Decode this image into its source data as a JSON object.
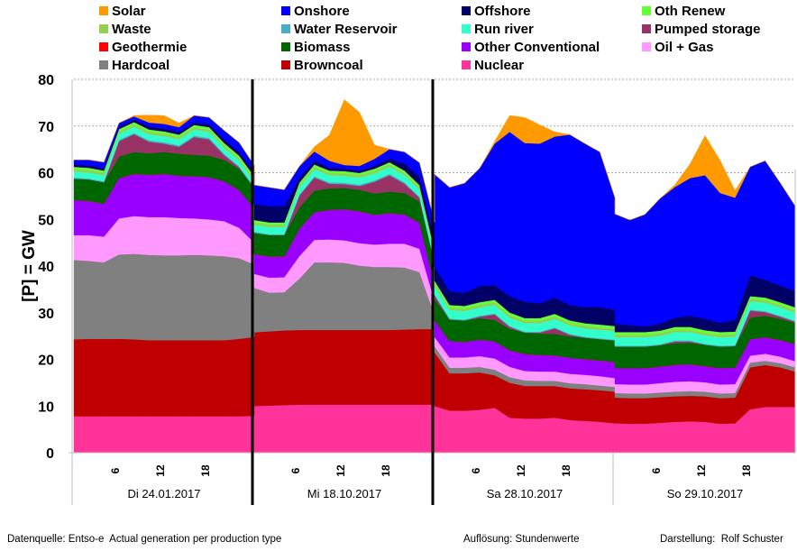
{
  "chart_data": {
    "type": "area",
    "stacked": true,
    "title": "",
    "ylabel": "[P] = GW",
    "xlabel": "",
    "ylim": [
      0,
      80
    ],
    "yticks": [
      0,
      10,
      20,
      30,
      40,
      50,
      60,
      70,
      80
    ],
    "grid": "horizontal-dotted",
    "legend_position": "top",
    "hour_ticks": [
      "6",
      "12",
      "18"
    ],
    "days": [
      "Di 24.01.2017",
      "Mi 18.10.2017",
      "Sa 28.10.2017",
      "So 29.10.2017"
    ],
    "sample_hours": [
      0,
      2,
      4,
      6,
      8,
      10,
      12,
      14,
      16,
      18,
      20,
      22,
      24
    ],
    "stack_order_bottom_to_top": [
      "Nuclear",
      "Browncoal",
      "Hardcoal",
      "Oil + Gas",
      "Other Conventional",
      "Geothermie",
      "Biomass",
      "Pumped storage",
      "Water Reservoir",
      "Run river",
      "Waste",
      "Oth Renew",
      "Offshore",
      "Onshore",
      "Solar"
    ],
    "series": [
      {
        "name": "Nuclear",
        "color": "#ff3399",
        "values": [
          [
            7.8,
            7.8,
            7.8,
            7.8,
            7.8,
            7.8,
            7.8,
            7.8,
            7.8,
            7.8,
            7.8,
            7.8,
            7.9
          ],
          [
            10.0,
            10.1,
            10.2,
            10.3,
            10.3,
            10.3,
            10.3,
            10.3,
            10.3,
            10.3,
            10.3,
            10.3,
            10.3
          ],
          [
            10.0,
            9.0,
            9.0,
            9.2,
            9.6,
            7.5,
            7.3,
            7.3,
            7.5,
            7.0,
            6.8,
            6.6,
            6.3
          ],
          [
            6.3,
            6.2,
            6.2,
            6.4,
            6.6,
            6.7,
            6.6,
            6.2,
            6.3,
            9.3,
            9.8,
            9.8,
            9.8
          ]
        ]
      },
      {
        "name": "Browncoal",
        "color": "#c00000",
        "values": [
          [
            16.5,
            16.6,
            16.6,
            16.6,
            16.5,
            16.3,
            16.3,
            16.3,
            16.3,
            16.3,
            16.3,
            16.6,
            16.9
          ],
          [
            15.8,
            15.9,
            16.0,
            16.0,
            16.0,
            16.0,
            16.0,
            16.0,
            16.0,
            16.0,
            16.1,
            16.2,
            16.2
          ],
          [
            11.5,
            8.0,
            8.0,
            8.0,
            7.0,
            7.5,
            7.0,
            7.0,
            6.8,
            6.8,
            6.8,
            6.8,
            6.8
          ],
          [
            5.5,
            5.5,
            5.5,
            5.5,
            5.5,
            5.5,
            5.5,
            5.5,
            5.5,
            9.0,
            9.0,
            8.5,
            7.6
          ]
        ]
      },
      {
        "name": "Hardcoal",
        "color": "#808080",
        "values": [
          [
            17.0,
            16.7,
            16.4,
            18.1,
            18.3,
            18.3,
            18.2,
            18.2,
            18.3,
            18.2,
            18.0,
            17.3,
            15.5
          ],
          [
            9.5,
            8.3,
            8.2,
            11.0,
            14.5,
            14.5,
            14.4,
            13.8,
            13.5,
            13.5,
            13.3,
            12.2,
            3.0
          ],
          [
            1.3,
            1.2,
            1.2,
            1.2,
            1.2,
            1.2,
            1.2,
            1.1,
            1.1,
            1.1,
            1.1,
            1.0,
            1.0
          ],
          [
            1.0,
            1.0,
            1.0,
            1.0,
            1.0,
            1.0,
            1.0,
            1.0,
            1.0,
            1.0,
            0.9,
            0.9,
            0.9
          ]
        ]
      },
      {
        "name": "Oil + Gas",
        "color": "#ff99ff",
        "values": [
          [
            5.3,
            5.5,
            5.5,
            7.7,
            8.1,
            8.1,
            8.2,
            8.0,
            7.8,
            7.7,
            7.5,
            6.5,
            4.7
          ],
          [
            3.0,
            3.2,
            3.2,
            4.8,
            4.8,
            4.9,
            4.8,
            4.8,
            4.8,
            5.0,
            5.1,
            5.0,
            3.0
          ],
          [
            2.0,
            2.2,
            2.2,
            2.3,
            2.4,
            2.2,
            2.0,
            2.0,
            2.0,
            2.0,
            2.0,
            2.0,
            1.9
          ],
          [
            1.9,
            1.9,
            1.9,
            2.0,
            2.1,
            2.1,
            2.0,
            1.9,
            1.9,
            1.5,
            1.5,
            1.4,
            1.3
          ]
        ]
      },
      {
        "name": "Other Conventional",
        "color": "#9900ff",
        "values": [
          [
            7.5,
            7.3,
            7.0,
            8.6,
            9.0,
            9.0,
            9.2,
            9.0,
            9.0,
            9.0,
            8.5,
            8.0,
            7.3
          ],
          [
            4.2,
            4.5,
            4.4,
            5.8,
            5.9,
            6.3,
            6.6,
            6.8,
            6.3,
            6.5,
            6.2,
            5.5,
            3.5
          ],
          [
            3.5,
            3.5,
            3.3,
            3.5,
            3.6,
            3.5,
            3.6,
            3.5,
            3.4,
            3.4,
            3.3,
            3.3,
            3.4
          ],
          [
            3.4,
            3.5,
            3.5,
            3.5,
            3.6,
            3.6,
            3.4,
            3.5,
            3.5,
            3.5,
            3.5,
            3.5,
            3.6
          ]
        ]
      },
      {
        "name": "Geothermie",
        "color": "#ff0000",
        "values": [
          [
            0.05,
            0.05,
            0.05,
            0.05,
            0.05,
            0.05,
            0.05,
            0.05,
            0.05,
            0.05,
            0.05,
            0.05,
            0.05
          ],
          [
            0.05,
            0.05,
            0.05,
            0.05,
            0.05,
            0.05,
            0.05,
            0.05,
            0.05,
            0.05,
            0.05,
            0.05,
            0.05
          ],
          [
            0.05,
            0.05,
            0.05,
            0.05,
            0.05,
            0.05,
            0.05,
            0.05,
            0.05,
            0.05,
            0.05,
            0.05,
            0.05
          ],
          [
            0.05,
            0.05,
            0.05,
            0.05,
            0.05,
            0.05,
            0.05,
            0.05,
            0.05,
            0.05,
            0.05,
            0.05,
            0.05
          ]
        ]
      },
      {
        "name": "Biomass",
        "color": "#006600",
        "values": [
          [
            4.6,
            4.6,
            4.6,
            4.6,
            4.7,
            4.6,
            4.7,
            4.7,
            4.6,
            4.6,
            4.6,
            4.6,
            4.4
          ],
          [
            4.6,
            4.6,
            4.6,
            4.6,
            4.6,
            4.6,
            4.6,
            4.6,
            4.6,
            4.6,
            4.6,
            4.6,
            4.6
          ],
          [
            4.6,
            4.6,
            4.6,
            4.6,
            4.6,
            4.6,
            4.6,
            4.6,
            4.6,
            4.6,
            4.6,
            4.6,
            4.6
          ],
          [
            4.6,
            4.6,
            4.6,
            4.6,
            4.6,
            4.6,
            4.6,
            4.6,
            4.6,
            4.6,
            4.6,
            4.6,
            4.6
          ]
        ]
      },
      {
        "name": "Pumped storage",
        "color": "#993366",
        "values": [
          [
            0.0,
            0.0,
            0.0,
            3.3,
            3.8,
            2.5,
            1.8,
            1.5,
            3.8,
            3.5,
            1.0,
            0.3,
            0.0
          ],
          [
            0.0,
            0.0,
            0.0,
            2.5,
            2.8,
            1.0,
            0.8,
            0.8,
            2.5,
            3.5,
            2.0,
            0.8,
            0.0
          ],
          [
            0.8,
            0.0,
            0.0,
            0.3,
            1.2,
            0.4,
            0.0,
            0.2,
            1.2,
            0.3,
            0.0,
            0.0,
            0.0
          ],
          [
            0.0,
            0.0,
            0.0,
            0.0,
            0.4,
            0.3,
            0.0,
            0.0,
            0.0,
            1.5,
            0.8,
            0.4,
            0.2
          ]
        ]
      },
      {
        "name": "Water Reservoir",
        "color": "#4bacc6",
        "values": [
          [
            0.2,
            0.2,
            0.2,
            0.3,
            0.3,
            0.3,
            0.3,
            0.3,
            0.3,
            0.3,
            0.3,
            0.2,
            0.2
          ],
          [
            0.2,
            0.2,
            0.2,
            0.3,
            0.3,
            0.3,
            0.3,
            0.3,
            0.3,
            0.3,
            0.3,
            0.2,
            0.2
          ],
          [
            0.2,
            0.2,
            0.2,
            0.2,
            0.2,
            0.2,
            0.2,
            0.2,
            0.2,
            0.2,
            0.2,
            0.2,
            0.2
          ],
          [
            0.2,
            0.2,
            0.2,
            0.2,
            0.2,
            0.2,
            0.2,
            0.2,
            0.2,
            0.2,
            0.2,
            0.2,
            0.2
          ]
        ]
      },
      {
        "name": "Run river",
        "color": "#33ffcc",
        "values": [
          [
            1.3,
            1.3,
            1.3,
            1.3,
            1.3,
            1.3,
            1.3,
            1.3,
            1.3,
            1.3,
            1.3,
            1.3,
            1.3
          ],
          [
            1.5,
            1.5,
            1.5,
            1.5,
            1.5,
            1.5,
            1.5,
            1.5,
            1.5,
            1.5,
            1.5,
            1.5,
            1.5
          ],
          [
            1.8,
            1.8,
            1.8,
            1.8,
            1.8,
            1.8,
            1.8,
            1.8,
            1.8,
            1.8,
            1.8,
            1.8,
            1.8
          ],
          [
            1.8,
            1.8,
            1.8,
            1.8,
            1.8,
            1.8,
            1.8,
            1.8,
            1.8,
            1.8,
            1.8,
            1.8,
            1.8
          ]
        ]
      },
      {
        "name": "Waste",
        "color": "#92d050",
        "values": [
          [
            0.5,
            0.5,
            0.5,
            0.5,
            0.5,
            0.5,
            0.5,
            0.5,
            0.5,
            0.5,
            0.5,
            0.5,
            0.5
          ],
          [
            0.5,
            0.5,
            0.5,
            0.5,
            0.5,
            0.5,
            0.5,
            0.5,
            0.5,
            0.5,
            0.5,
            0.5,
            0.5
          ],
          [
            0.5,
            0.5,
            0.5,
            0.5,
            0.5,
            0.5,
            0.5,
            0.5,
            0.5,
            0.5,
            0.5,
            0.5,
            0.5
          ],
          [
            0.5,
            0.5,
            0.5,
            0.5,
            0.5,
            0.5,
            0.5,
            0.5,
            0.5,
            0.5,
            0.5,
            0.5,
            0.5
          ]
        ]
      },
      {
        "name": "Oth Renew",
        "color": "#66ff33",
        "values": [
          [
            0.5,
            0.5,
            0.5,
            0.5,
            0.5,
            0.5,
            0.5,
            0.5,
            0.5,
            0.5,
            0.5,
            0.5,
            0.5
          ],
          [
            0.5,
            0.5,
            0.5,
            0.5,
            0.5,
            0.5,
            0.5,
            0.5,
            0.5,
            0.5,
            0.5,
            0.5,
            0.5
          ],
          [
            0.6,
            0.6,
            0.6,
            0.6,
            0.6,
            0.6,
            0.6,
            0.6,
            0.6,
            0.6,
            0.6,
            0.6,
            0.6
          ],
          [
            0.6,
            0.6,
            0.6,
            0.6,
            0.6,
            0.6,
            0.6,
            0.6,
            0.6,
            0.6,
            0.6,
            0.6,
            0.6
          ]
        ]
      },
      {
        "name": "Offshore",
        "color": "#000066",
        "values": [
          [
            0.5,
            0.5,
            0.5,
            0.5,
            0.5,
            0.6,
            0.6,
            0.6,
            0.5,
            0.6,
            0.7,
            0.8,
            0.8
          ],
          [
            3.5,
            3.5,
            3.5,
            1.0,
            0.8,
            0.6,
            0.5,
            0.5,
            0.6,
            0.8,
            1.5,
            1.8,
            2.5
          ],
          [
            3.0,
            3.0,
            2.8,
            3.5,
            3.2,
            3.5,
            3.5,
            3.2,
            3.5,
            3.3,
            3.5,
            3.8,
            3.5
          ],
          [
            1.8,
            1.5,
            1.2,
            1.5,
            2.0,
            2.4,
            2.5,
            2.0,
            2.5,
            4.5,
            3.8,
            3.6,
            3.5
          ]
        ]
      },
      {
        "name": "Onshore",
        "color": "#0000ff",
        "values": [
          [
            1.0,
            1.2,
            1.3,
            0.8,
            0.7,
            0.9,
            1.0,
            1.0,
            1.5,
            1.5,
            2.0,
            2.0,
            1.5
          ],
          [
            4.0,
            4.0,
            3.5,
            2.5,
            2.0,
            1.5,
            0.8,
            1.0,
            1.5,
            2.0,
            2.5,
            3.0,
            3.5
          ],
          [
            19.8,
            22.2,
            23.5,
            25.2,
            30.3,
            35.2,
            34.0,
            34.2,
            34.5,
            36.5,
            35.0,
            33.2,
            24.0
          ],
          [
            23.5,
            22.5,
            24.0,
            26.8,
            28.0,
            29.5,
            30.7,
            27.8,
            26.2,
            23.2,
            25.5,
            22.0,
            18.2
          ]
        ]
      },
      {
        "name": "Solar",
        "color": "#ff9900",
        "values": [
          [
            0.0,
            0.0,
            0.0,
            0.0,
            0.2,
            1.6,
            1.8,
            0.9,
            0.0,
            0.0,
            0.0,
            0.0,
            0.0
          ],
          [
            0.0,
            0.0,
            0.0,
            0.0,
            1.0,
            5.5,
            14.0,
            11.5,
            3.0,
            0.0,
            0.0,
            0.0,
            0.0
          ],
          [
            0.0,
            0.0,
            0.0,
            0.0,
            0.5,
            3.5,
            5.5,
            4.0,
            1.0,
            0.0,
            0.0,
            0.0,
            0.0
          ],
          [
            0.0,
            0.0,
            0.0,
            0.0,
            0.5,
            3.0,
            8.5,
            7.0,
            1.5,
            0.0,
            0.0,
            0.0,
            0.0
          ]
        ]
      }
    ],
    "legend": [
      [
        "Solar",
        "Onshore",
        "Offshore",
        "Oth Renew"
      ],
      [
        "Waste",
        "Water Reservoir",
        "Run river",
        "Pumped storage"
      ],
      [
        "Geothermie",
        "Biomass",
        "Other Conventional",
        "Oil + Gas"
      ],
      [
        "Hardcoal",
        "Browncoal",
        "Nuclear"
      ]
    ]
  },
  "footer": {
    "source": "Datenquelle: Entso-e  Actual generation per production type",
    "resolution": "Auflösung: Stundenwerte",
    "author": "Darstellung:  Rolf Schuster"
  }
}
